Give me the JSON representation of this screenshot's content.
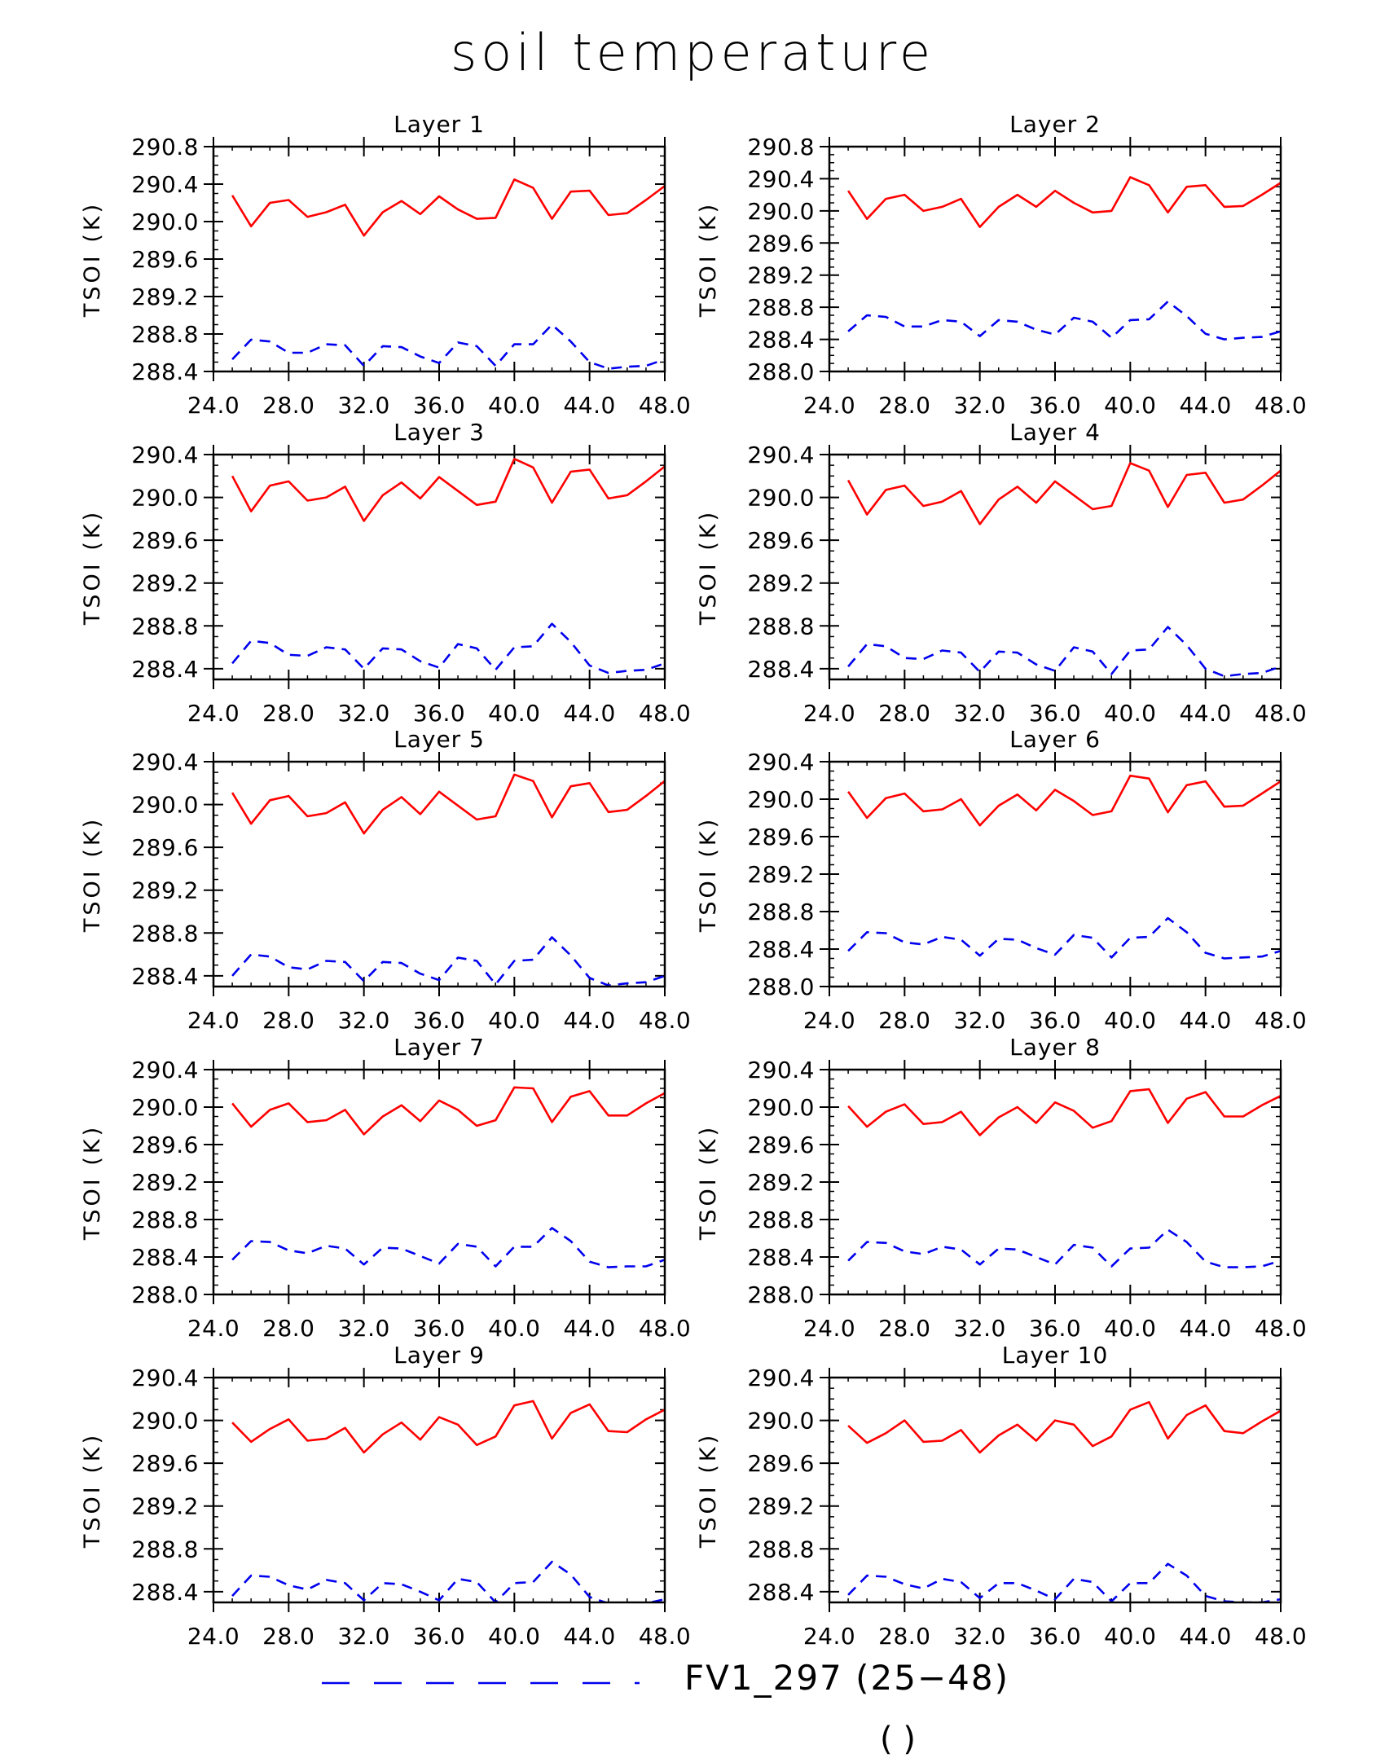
{
  "title": "soil temperature",
  "legend": {
    "label": "FV1_297 (25−48)",
    "color": "#0000ee",
    "style": "dashed"
  },
  "cutoff_text": "( )",
  "colors": {
    "solid_series": "#ff0000",
    "dashed_series": "#0000ee",
    "axis": "#000000"
  },
  "chart_data": [
    {
      "type": "line",
      "title": "Layer 1",
      "ylabel": "TSOI   (K)",
      "xlim": [
        24,
        48
      ],
      "ylim": [
        288.4,
        290.8
      ],
      "yticks": [
        "288.4",
        "288.8",
        "289.2",
        "289.6",
        "290.0",
        "290.4",
        "290.8"
      ],
      "xticks": [
        "24.0",
        "28.0",
        "32.0",
        "36.0",
        "40.0",
        "44.0",
        "48.0"
      ],
      "x": [
        25,
        26,
        27,
        28,
        29,
        30,
        31,
        32,
        33,
        34,
        35,
        36,
        37,
        38,
        39,
        40,
        41,
        42,
        43,
        44,
        45,
        46,
        47,
        48
      ],
      "series": [
        {
          "style": "solid",
          "values": [
            290.28,
            289.95,
            290.2,
            290.23,
            290.05,
            290.1,
            290.18,
            289.85,
            290.1,
            290.22,
            290.08,
            290.27,
            290.13,
            290.03,
            290.04,
            290.45,
            290.36,
            290.03,
            290.32,
            290.33,
            290.07,
            290.09,
            290.23,
            290.38
          ]
        },
        {
          "style": "dashed",
          "values": [
            288.53,
            288.74,
            288.72,
            288.6,
            288.6,
            288.69,
            288.68,
            288.46,
            288.67,
            288.66,
            288.56,
            288.49,
            288.71,
            288.67,
            288.46,
            288.69,
            288.69,
            288.9,
            288.72,
            288.5,
            288.43,
            288.45,
            288.46,
            288.53
          ]
        }
      ]
    },
    {
      "type": "line",
      "title": "Layer 2",
      "ylabel": "TSOI   (K)",
      "xlim": [
        24,
        48
      ],
      "ylim": [
        288.0,
        290.8
      ],
      "yticks": [
        "288.0",
        "288.4",
        "288.8",
        "289.2",
        "289.6",
        "290.0",
        "290.4",
        "290.8"
      ],
      "xticks": [
        "24.0",
        "28.0",
        "32.0",
        "36.0",
        "40.0",
        "44.0",
        "48.0"
      ],
      "x": [
        25,
        26,
        27,
        28,
        29,
        30,
        31,
        32,
        33,
        34,
        35,
        36,
        37,
        38,
        39,
        40,
        41,
        42,
        43,
        44,
        45,
        46,
        47,
        48
      ],
      "series": [
        {
          "style": "solid",
          "values": [
            290.25,
            289.9,
            290.15,
            290.2,
            290.0,
            290.05,
            290.15,
            289.8,
            290.05,
            290.2,
            290.05,
            290.25,
            290.1,
            289.98,
            290.0,
            290.42,
            290.32,
            289.98,
            290.3,
            290.32,
            290.05,
            290.06,
            290.2,
            290.35
          ]
        },
        {
          "style": "dashed",
          "values": [
            288.5,
            288.7,
            288.68,
            288.56,
            288.56,
            288.64,
            288.62,
            288.44,
            288.64,
            288.62,
            288.52,
            288.46,
            288.67,
            288.62,
            288.42,
            288.64,
            288.65,
            288.87,
            288.69,
            288.47,
            288.4,
            288.42,
            288.43,
            288.5
          ]
        }
      ]
    },
    {
      "type": "line",
      "title": "Layer 3",
      "ylabel": "TSOI   (K)",
      "xlim": [
        24,
        48
      ],
      "ylim": [
        288.3,
        290.4
      ],
      "yticks": [
        "288.4",
        "288.8",
        "289.2",
        "289.6",
        "290.0",
        "290.4"
      ],
      "xticks": [
        "24.0",
        "28.0",
        "32.0",
        "36.0",
        "40.0",
        "44.0",
        "48.0"
      ],
      "x": [
        25,
        26,
        27,
        28,
        29,
        30,
        31,
        32,
        33,
        34,
        35,
        36,
        37,
        38,
        39,
        40,
        41,
        42,
        43,
        44,
        45,
        46,
        47,
        48
      ],
      "series": [
        {
          "style": "solid",
          "values": [
            290.2,
            289.87,
            290.11,
            290.15,
            289.97,
            290.0,
            290.1,
            289.78,
            290.02,
            290.14,
            289.99,
            290.19,
            290.06,
            289.93,
            289.96,
            290.36,
            290.28,
            289.95,
            290.24,
            290.26,
            289.99,
            290.02,
            290.15,
            290.29
          ]
        },
        {
          "style": "dashed",
          "values": [
            288.45,
            288.66,
            288.64,
            288.53,
            288.52,
            288.6,
            288.58,
            288.4,
            288.59,
            288.58,
            288.47,
            288.41,
            288.63,
            288.59,
            288.39,
            288.6,
            288.61,
            288.82,
            288.65,
            288.43,
            288.36,
            288.38,
            288.39,
            288.45
          ]
        }
      ]
    },
    {
      "type": "line",
      "title": "Layer 4",
      "ylabel": "TSOI   (K)",
      "xlim": [
        24,
        48
      ],
      "ylim": [
        288.3,
        290.4
      ],
      "yticks": [
        "288.4",
        "288.8",
        "289.2",
        "289.6",
        "290.0",
        "290.4"
      ],
      "xticks": [
        "24.0",
        "28.0",
        "32.0",
        "36.0",
        "40.0",
        "44.0",
        "48.0"
      ],
      "x": [
        25,
        26,
        27,
        28,
        29,
        30,
        31,
        32,
        33,
        34,
        35,
        36,
        37,
        38,
        39,
        40,
        41,
        42,
        43,
        44,
        45,
        46,
        47,
        48
      ],
      "series": [
        {
          "style": "solid",
          "values": [
            290.16,
            289.84,
            290.07,
            290.11,
            289.92,
            289.96,
            290.06,
            289.75,
            289.98,
            290.1,
            289.95,
            290.15,
            290.02,
            289.89,
            289.92,
            290.32,
            290.25,
            289.91,
            290.21,
            290.23,
            289.95,
            289.98,
            290.11,
            290.25
          ]
        },
        {
          "style": "dashed",
          "values": [
            288.42,
            288.63,
            288.61,
            288.5,
            288.49,
            288.57,
            288.55,
            288.37,
            288.56,
            288.55,
            288.44,
            288.38,
            288.6,
            288.56,
            288.35,
            288.57,
            288.58,
            288.79,
            288.62,
            288.4,
            288.33,
            288.35,
            288.36,
            288.42
          ]
        }
      ]
    },
    {
      "type": "line",
      "title": "Layer 5",
      "ylabel": "TSOI   (K)",
      "xlim": [
        24,
        48
      ],
      "ylim": [
        288.3,
        290.4
      ],
      "yticks": [
        "288.4",
        "288.8",
        "289.2",
        "289.6",
        "290.0",
        "290.4"
      ],
      "xticks": [
        "24.0",
        "28.0",
        "32.0",
        "36.0",
        "40.0",
        "44.0",
        "48.0"
      ],
      "x": [
        25,
        26,
        27,
        28,
        29,
        30,
        31,
        32,
        33,
        34,
        35,
        36,
        37,
        38,
        39,
        40,
        41,
        42,
        43,
        44,
        45,
        46,
        47,
        48
      ],
      "series": [
        {
          "style": "solid",
          "values": [
            290.11,
            289.82,
            290.04,
            290.08,
            289.89,
            289.92,
            290.02,
            289.73,
            289.95,
            290.07,
            289.91,
            290.12,
            289.99,
            289.86,
            289.89,
            290.28,
            290.22,
            289.88,
            290.17,
            290.2,
            289.93,
            289.95,
            290.08,
            290.22
          ]
        },
        {
          "style": "dashed",
          "values": [
            288.4,
            288.6,
            288.58,
            288.48,
            288.46,
            288.54,
            288.53,
            288.35,
            288.53,
            288.52,
            288.42,
            288.36,
            288.57,
            288.54,
            288.32,
            288.54,
            288.55,
            288.76,
            288.59,
            288.38,
            288.31,
            288.33,
            288.34,
            288.4
          ]
        }
      ]
    },
    {
      "type": "line",
      "title": "Layer 6",
      "ylabel": "TSOI   (K)",
      "xlim": [
        24,
        48
      ],
      "ylim": [
        288.0,
        290.4
      ],
      "yticks": [
        "288.0",
        "288.4",
        "288.8",
        "289.2",
        "289.6",
        "290.0",
        "290.4"
      ],
      "xticks": [
        "24.0",
        "28.0",
        "32.0",
        "36.0",
        "40.0",
        "44.0",
        "48.0"
      ],
      "x": [
        25,
        26,
        27,
        28,
        29,
        30,
        31,
        32,
        33,
        34,
        35,
        36,
        37,
        38,
        39,
        40,
        41,
        42,
        43,
        44,
        45,
        46,
        47,
        48
      ],
      "series": [
        {
          "style": "solid",
          "values": [
            290.08,
            289.8,
            290.01,
            290.06,
            289.87,
            289.89,
            290.0,
            289.72,
            289.93,
            290.05,
            289.88,
            290.1,
            289.98,
            289.83,
            289.87,
            290.25,
            290.22,
            289.86,
            290.15,
            290.19,
            289.92,
            289.93,
            290.06,
            290.19
          ]
        },
        {
          "style": "dashed",
          "values": [
            288.38,
            288.58,
            288.57,
            288.47,
            288.45,
            288.53,
            288.5,
            288.33,
            288.51,
            288.5,
            288.41,
            288.34,
            288.55,
            288.52,
            288.31,
            288.52,
            288.53,
            288.73,
            288.58,
            288.36,
            288.3,
            288.31,
            288.32,
            288.38
          ]
        }
      ]
    },
    {
      "type": "line",
      "title": "Layer 7",
      "ylabel": "TSOI   (K)",
      "xlim": [
        24,
        48
      ],
      "ylim": [
        288.0,
        290.4
      ],
      "yticks": [
        "288.0",
        "288.4",
        "288.8",
        "289.2",
        "289.6",
        "290.0",
        "290.4"
      ],
      "xticks": [
        "24.0",
        "28.0",
        "32.0",
        "36.0",
        "40.0",
        "44.0",
        "48.0"
      ],
      "x": [
        25,
        26,
        27,
        28,
        29,
        30,
        31,
        32,
        33,
        34,
        35,
        36,
        37,
        38,
        39,
        40,
        41,
        42,
        43,
        44,
        45,
        46,
        47,
        48
      ],
      "series": [
        {
          "style": "solid",
          "values": [
            290.04,
            289.79,
            289.97,
            290.04,
            289.84,
            289.86,
            289.97,
            289.71,
            289.9,
            290.02,
            289.85,
            290.07,
            289.97,
            289.8,
            289.86,
            290.21,
            290.2,
            289.84,
            290.11,
            290.17,
            289.91,
            289.91,
            290.04,
            290.15
          ]
        },
        {
          "style": "dashed",
          "values": [
            288.37,
            288.57,
            288.56,
            288.47,
            288.44,
            288.52,
            288.49,
            288.32,
            288.5,
            288.49,
            288.41,
            288.33,
            288.54,
            288.51,
            288.3,
            288.51,
            288.51,
            288.71,
            288.57,
            288.35,
            288.29,
            288.3,
            288.3,
            288.37
          ]
        }
      ]
    },
    {
      "type": "line",
      "title": "Layer 8",
      "ylabel": "TSOI   (K)",
      "xlim": [
        24,
        48
      ],
      "ylim": [
        288.0,
        290.4
      ],
      "yticks": [
        "288.0",
        "288.4",
        "288.8",
        "289.2",
        "289.6",
        "290.0",
        "290.4"
      ],
      "xticks": [
        "24.0",
        "28.0",
        "32.0",
        "36.0",
        "40.0",
        "44.0",
        "48.0"
      ],
      "x": [
        25,
        26,
        27,
        28,
        29,
        30,
        31,
        32,
        33,
        34,
        35,
        36,
        37,
        38,
        39,
        40,
        41,
        42,
        43,
        44,
        45,
        46,
        47,
        48
      ],
      "series": [
        {
          "style": "solid",
          "values": [
            290.01,
            289.79,
            289.95,
            290.03,
            289.82,
            289.84,
            289.95,
            289.7,
            289.89,
            290.0,
            289.83,
            290.05,
            289.96,
            289.78,
            289.85,
            290.17,
            290.19,
            289.83,
            290.09,
            290.16,
            289.9,
            289.9,
            290.02,
            290.12
          ]
        },
        {
          "style": "dashed",
          "values": [
            288.36,
            288.56,
            288.55,
            288.46,
            288.43,
            288.51,
            288.48,
            288.32,
            288.49,
            288.48,
            288.4,
            288.32,
            288.53,
            288.5,
            288.3,
            288.49,
            288.5,
            288.69,
            288.56,
            288.35,
            288.29,
            288.29,
            288.3,
            288.36
          ]
        }
      ]
    },
    {
      "type": "line",
      "title": "Layer 9",
      "ylabel": "TSOI   (K)",
      "xlim": [
        24,
        48
      ],
      "ylim": [
        288.3,
        290.4
      ],
      "yticks": [
        "288.4",
        "288.8",
        "289.2",
        "289.6",
        "290.0",
        "290.4"
      ],
      "xticks": [
        "24.0",
        "28.0",
        "32.0",
        "36.0",
        "40.0",
        "44.0",
        "48.0"
      ],
      "x": [
        25,
        26,
        27,
        28,
        29,
        30,
        31,
        32,
        33,
        34,
        35,
        36,
        37,
        38,
        39,
        40,
        41,
        42,
        43,
        44,
        45,
        46,
        47,
        48
      ],
      "series": [
        {
          "style": "solid",
          "values": [
            289.98,
            289.8,
            289.92,
            290.01,
            289.81,
            289.83,
            289.93,
            289.7,
            289.87,
            289.98,
            289.82,
            290.03,
            289.96,
            289.77,
            289.85,
            290.14,
            290.18,
            289.83,
            290.07,
            290.15,
            289.9,
            289.89,
            290.01,
            290.1
          ]
        },
        {
          "style": "dashed",
          "values": [
            288.36,
            288.55,
            288.54,
            288.46,
            288.42,
            288.51,
            288.48,
            288.32,
            288.48,
            288.47,
            288.4,
            288.32,
            288.52,
            288.49,
            288.3,
            288.48,
            288.49,
            288.68,
            288.56,
            288.35,
            288.29,
            288.29,
            288.29,
            288.33
          ]
        }
      ]
    },
    {
      "type": "line",
      "title": "Layer 10",
      "ylabel": "TSOI   (K)",
      "xlim": [
        24,
        48
      ],
      "ylim": [
        288.3,
        290.4
      ],
      "yticks": [
        "288.4",
        "288.8",
        "289.2",
        "289.6",
        "290.0",
        "290.4"
      ],
      "xticks": [
        "24.0",
        "28.0",
        "32.0",
        "36.0",
        "40.0",
        "44.0",
        "48.0"
      ],
      "x": [
        25,
        26,
        27,
        28,
        29,
        30,
        31,
        32,
        33,
        34,
        35,
        36,
        37,
        38,
        39,
        40,
        41,
        42,
        43,
        44,
        45,
        46,
        47,
        48
      ],
      "series": [
        {
          "style": "solid",
          "values": [
            289.95,
            289.79,
            289.88,
            290.0,
            289.8,
            289.81,
            289.91,
            289.7,
            289.86,
            289.96,
            289.81,
            290.0,
            289.96,
            289.76,
            289.85,
            290.1,
            290.17,
            289.83,
            290.05,
            290.14,
            289.9,
            289.88,
            289.99,
            290.09
          ]
        },
        {
          "style": "dashed",
          "values": [
            288.37,
            288.55,
            288.54,
            288.47,
            288.43,
            288.52,
            288.49,
            288.34,
            288.48,
            288.48,
            288.41,
            288.33,
            288.52,
            288.49,
            288.31,
            288.48,
            288.48,
            288.66,
            288.55,
            288.36,
            288.31,
            288.3,
            288.3,
            288.33
          ]
        }
      ]
    }
  ]
}
